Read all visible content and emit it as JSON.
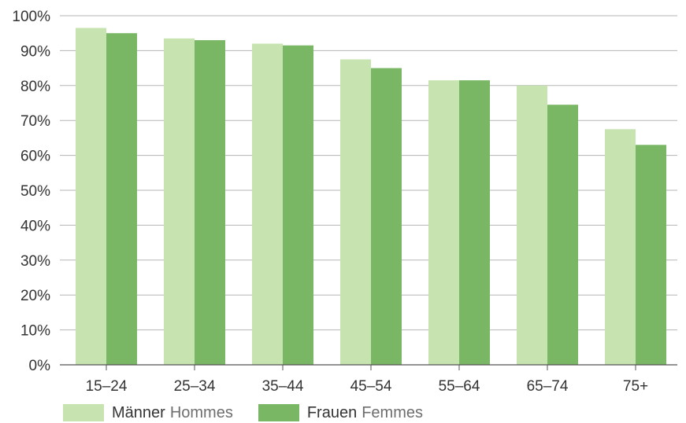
{
  "chart_data": {
    "type": "bar",
    "categories": [
      "15–24",
      "25–34",
      "35–44",
      "45–54",
      "55–64",
      "65–74",
      "75+"
    ],
    "series": [
      {
        "name": "Männer Hommes",
        "name_de": "Männer",
        "name_fr": "Hommes",
        "color": "#c6e3b0",
        "values": [
          96.5,
          93.5,
          92,
          87.5,
          81.5,
          80,
          67.5
        ]
      },
      {
        "name": "Frauen Femmes",
        "name_de": "Frauen",
        "name_fr": "Femmes",
        "color": "#79b765",
        "values": [
          95,
          93,
          91.5,
          85,
          81.5,
          74.5,
          63
        ]
      }
    ],
    "ylim": [
      0,
      100
    ],
    "yticks": [
      0,
      10,
      20,
      30,
      40,
      50,
      60,
      70,
      80,
      90,
      100
    ],
    "ytick_suffix": "%",
    "grid": true,
    "legend_position": "bottom-left",
    "title": "",
    "xlabel": "",
    "ylabel": ""
  }
}
